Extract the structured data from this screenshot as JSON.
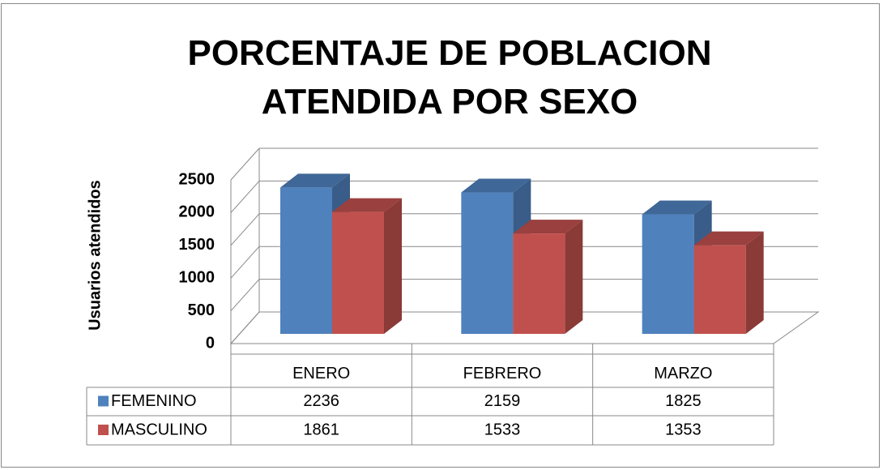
{
  "chart_data": {
    "type": "bar3d",
    "title": "PORCENTAJE DE POBLACION ATENDIDA POR SEXO",
    "y_label": "Usuarios atendidos",
    "categories": [
      "ENERO",
      "FEBRERO",
      "MARZO"
    ],
    "series": [
      {
        "name": "FEMENINO",
        "color": "#4f81bd",
        "values": [
          2236,
          2159,
          1825
        ]
      },
      {
        "name": "MASCULINO",
        "color": "#c0504d",
        "values": [
          1861,
          1533,
          1353
        ]
      }
    ],
    "ylim": [
      0,
      2500
    ],
    "yticks": [
      0,
      500,
      1000,
      1500,
      2000,
      2500
    ],
    "grid": true,
    "data_table": true
  }
}
